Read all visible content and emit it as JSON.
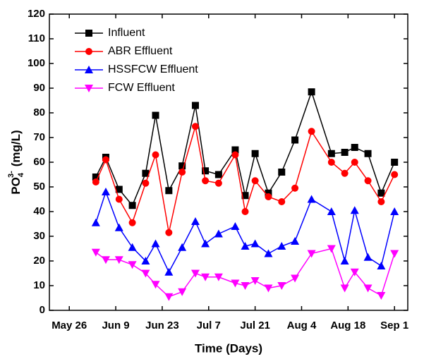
{
  "chart_data": {
    "type": "line",
    "x_label": "Time (Days)",
    "y_label": {
      "main": "PO",
      "sub": "4",
      "sup": "3-",
      "unit": "(mg/L)"
    },
    "x": [
      "Jun 3",
      "Jun 6",
      "Jun 10",
      "Jun 14",
      "Jun 18",
      "Jun 21",
      "Jun 25",
      "Jun 29",
      "Jul 3",
      "Jul 6",
      "Jul 10",
      "Jul 15",
      "Jul 18",
      "Jul 21",
      "Jul 25",
      "Jul 29",
      "Aug 2",
      "Aug 7",
      "Aug 13",
      "Aug 17",
      "Aug 20",
      "Aug 24",
      "Aug 28",
      "Sep 1"
    ],
    "series": [
      {
        "name": "Influent",
        "color": "#000000",
        "marker": "square",
        "values": [
          54,
          62,
          49,
          42.5,
          55.5,
          79,
          48.5,
          58.5,
          83,
          56.5,
          55,
          65,
          46.5,
          63.5,
          47.5,
          56,
          69,
          88.5,
          63.5,
          64,
          66,
          63.5,
          47.5,
          60
        ]
      },
      {
        "name": "ABR Effluent",
        "color": "#ff0000",
        "marker": "circle",
        "values": [
          52,
          61,
          45,
          35.5,
          51.5,
          63,
          31.5,
          56,
          74.5,
          52.5,
          51.5,
          63,
          40,
          52.5,
          46,
          44,
          49.5,
          72.5,
          60,
          55.5,
          60,
          52.5,
          44,
          55
        ]
      },
      {
        "name": "HSSFCW Effluent",
        "color": "#0000ff",
        "marker": "triangle-up",
        "values": [
          35.5,
          48,
          33.5,
          25.5,
          20,
          27,
          15.5,
          25.5,
          36,
          27,
          31,
          34,
          26,
          27,
          23,
          26,
          28,
          45,
          40,
          20,
          40.5,
          21.5,
          18,
          40
        ]
      },
      {
        "name": "FCW Effluent",
        "color": "#ff00ff",
        "marker": "triangle-down",
        "values": [
          23.5,
          20.5,
          20.5,
          18.5,
          15,
          10.5,
          5.5,
          7.5,
          15,
          13.5,
          13.5,
          11,
          10,
          12,
          9,
          10,
          13,
          23,
          25,
          9,
          15.5,
          9,
          6,
          23
        ]
      }
    ],
    "xlim": [
      "May 20",
      "Sep 5"
    ],
    "xticks": [
      "May 26",
      "Jun 9",
      "Jun 23",
      "Jul 7",
      "Jul 21",
      "Aug 4",
      "Aug 18",
      "Sep 1"
    ],
    "ylim": [
      0,
      120
    ],
    "yticks": [
      0,
      10,
      20,
      30,
      40,
      50,
      60,
      70,
      80,
      90,
      100,
      110,
      120
    ],
    "legend": "upper-left"
  }
}
